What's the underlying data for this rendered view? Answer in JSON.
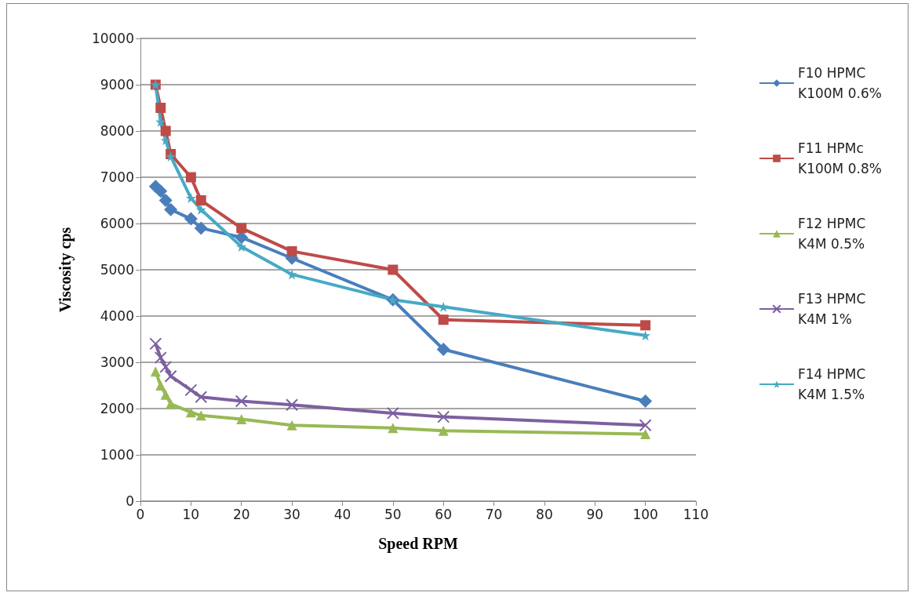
{
  "chart_data": {
    "type": "line",
    "xlabel": "Speed RPM",
    "ylabel": "Viscosity cps",
    "x": [
      3,
      4,
      5,
      6,
      10,
      12,
      20,
      30,
      50,
      60,
      100
    ],
    "xlim": [
      0,
      110
    ],
    "xticks": [
      0,
      10,
      20,
      30,
      40,
      50,
      60,
      70,
      80,
      90,
      100,
      110
    ],
    "ylim": [
      0,
      10000
    ],
    "yticks": [
      0,
      1000,
      2000,
      3000,
      4000,
      5000,
      6000,
      7000,
      8000,
      9000,
      10000
    ],
    "grid": "y",
    "legend": "right",
    "series": [
      {
        "name": "F10 HPMC K100M 0.6%",
        "color": "#4a7ebb",
        "marker": "diamond",
        "values": [
          6800,
          6700,
          6500,
          6300,
          6100,
          5900,
          5700,
          5250,
          4350,
          3280,
          2160
        ]
      },
      {
        "name": "F11 HPMc K100M 0.8%",
        "color": "#be4b48",
        "marker": "square",
        "values": [
          9000,
          8500,
          8000,
          7500,
          7000,
          6500,
          5900,
          5400,
          5000,
          3920,
          3800
        ]
      },
      {
        "name": "F12 HPMC K4M 0.5%",
        "color": "#98b954",
        "marker": "triangle",
        "values": [
          2800,
          2500,
          2300,
          2100,
          1920,
          1850,
          1770,
          1640,
          1580,
          1520,
          1450
        ]
      },
      {
        "name": "F13 HPMC K4M 1%",
        "color": "#7d60a0",
        "marker": "cross",
        "values": [
          3400,
          3100,
          2900,
          2700,
          2400,
          2250,
          2160,
          2080,
          1900,
          1820,
          1640
        ]
      },
      {
        "name": "F14 HPMC K4M 1.5%",
        "color": "#46aac5",
        "marker": "star",
        "values": [
          9000,
          8200,
          7800,
          7450,
          6550,
          6300,
          5500,
          4900,
          4350,
          4200,
          3580
        ]
      }
    ]
  }
}
